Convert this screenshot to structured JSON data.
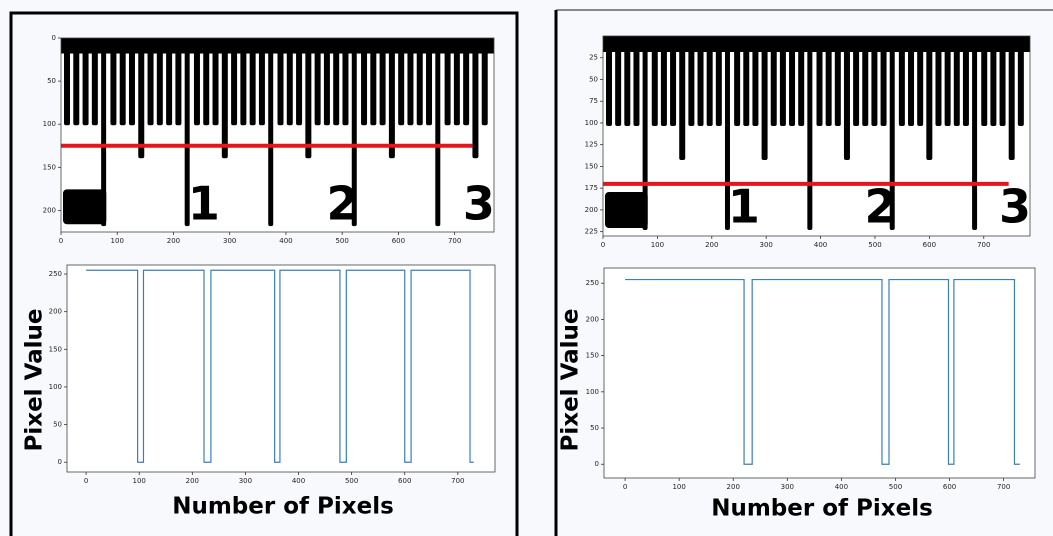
{
  "chart_data": [
    {
      "type": "image",
      "xlim": [
        0,
        770
      ],
      "ylim": [
        0,
        225
      ],
      "xticks": [
        0,
        100,
        200,
        300,
        400,
        500,
        600,
        700
      ],
      "yticks": [
        0,
        50,
        100,
        150,
        200
      ],
      "line_y": 125,
      "line_color": "#e8141b",
      "image_labels": [
        "1",
        "2",
        "3"
      ]
    },
    {
      "type": "line",
      "xlabel": "Number of Pixels",
      "ylabel": "Pixel Value",
      "xlim": [
        -36,
        770
      ],
      "ylim": [
        -13,
        262
      ],
      "xticks": [
        0,
        100,
        200,
        300,
        400,
        500,
        600,
        700
      ],
      "yticks": [
        0,
        50,
        100,
        150,
        200,
        250
      ],
      "x": [
        0,
        97,
        97,
        108,
        108,
        222,
        222,
        235,
        235,
        355,
        355,
        365,
        365,
        478,
        478,
        490,
        490,
        600,
        600,
        612,
        612,
        723,
        723,
        730
      ],
      "values": [
        255,
        255,
        0,
        0,
        255,
        255,
        0,
        0,
        255,
        255,
        0,
        0,
        255,
        255,
        0,
        0,
        255,
        255,
        0,
        0,
        255,
        255,
        0,
        0
      ],
      "color": "#3b7fb8"
    },
    {
      "type": "image",
      "xlim": [
        0,
        785
      ],
      "ylim": [
        0,
        230
      ],
      "xticks": [
        0,
        100,
        200,
        300,
        400,
        500,
        600,
        700
      ],
      "yticks": [
        25,
        50,
        75,
        100,
        125,
        150,
        175,
        200,
        225
      ],
      "line_y": 170,
      "line_color": "#e8141b",
      "image_labels": [
        "1",
        "2",
        "3"
      ]
    },
    {
      "type": "line",
      "xlabel": "Number of Pixels",
      "ylabel": "Pixel Value",
      "xlim": [
        -39,
        758
      ],
      "ylim": [
        -19,
        271
      ],
      "xticks": [
        0,
        100,
        200,
        300,
        400,
        500,
        600,
        700
      ],
      "yticks": [
        0,
        50,
        100,
        150,
        200,
        250
      ],
      "x": [
        0,
        220,
        220,
        235,
        235,
        475,
        475,
        488,
        488,
        598,
        598,
        608,
        608,
        720,
        720,
        730
      ],
      "values": [
        255,
        255,
        0,
        0,
        255,
        255,
        0,
        0,
        255,
        255,
        0,
        0,
        255,
        255,
        0,
        0
      ],
      "color": "#3b7fb8"
    }
  ]
}
